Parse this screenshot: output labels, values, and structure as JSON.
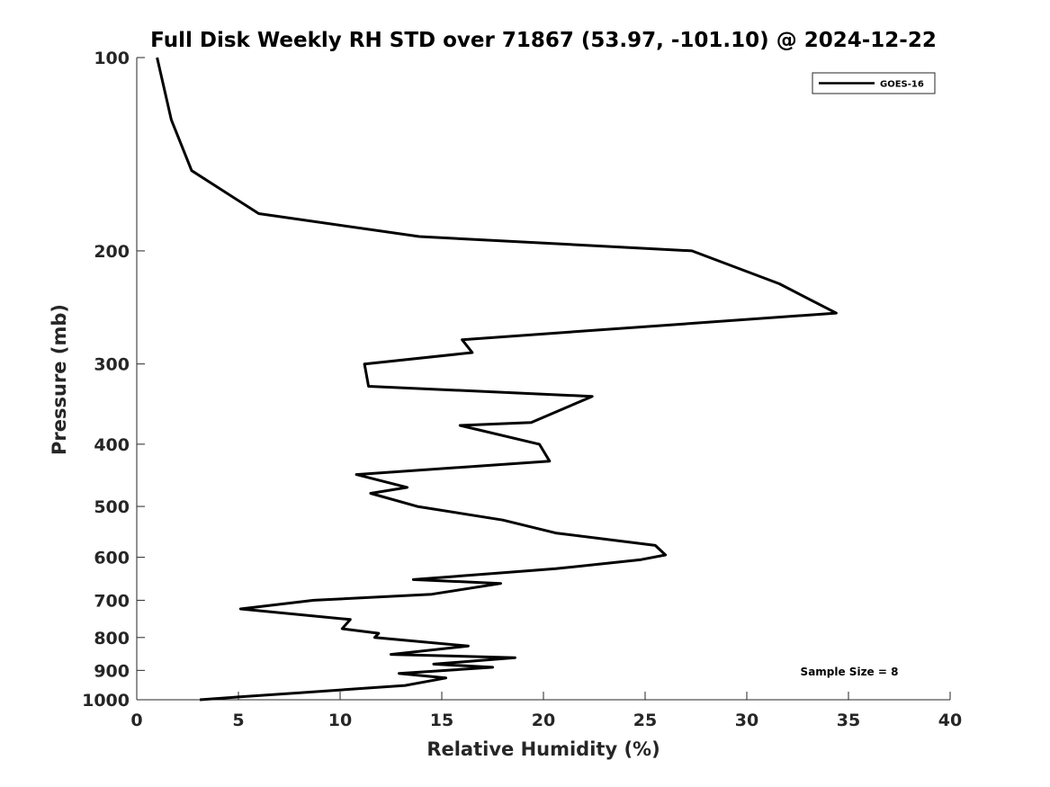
{
  "chart_data": {
    "type": "line",
    "title": "Full Disk Weekly RH STD over 71867 (53.97, -101.10) @ 2024-12-22",
    "xlabel": "Relative Humidity (%)",
    "ylabel": "Pressure (mb)",
    "xlim": [
      0,
      40
    ],
    "ylim": [
      100,
      1000
    ],
    "yscale": "log",
    "y_reversed": true,
    "grid": false,
    "x_ticks": [
      0,
      5,
      10,
      15,
      20,
      25,
      30,
      35,
      40
    ],
    "y_ticks": [
      100,
      200,
      300,
      400,
      500,
      600,
      700,
      800,
      900,
      1000
    ],
    "legend_position": "top-right",
    "annotation": "Sample Size = 8",
    "series": [
      {
        "name": "GOES-16",
        "color": "#000000",
        "points": [
          [
            1.0,
            100
          ],
          [
            1.7,
            125
          ],
          [
            2.7,
            150
          ],
          [
            6.0,
            175
          ],
          [
            13.9,
            190
          ],
          [
            27.3,
            200
          ],
          [
            31.6,
            225
          ],
          [
            34.4,
            250
          ],
          [
            16.0,
            275
          ],
          [
            16.5,
            288
          ],
          [
            11.2,
            300
          ],
          [
            11.4,
            325
          ],
          [
            22.4,
            337
          ],
          [
            19.4,
            370
          ],
          [
            15.9,
            374
          ],
          [
            19.8,
            400
          ],
          [
            20.3,
            425
          ],
          [
            10.8,
            446
          ],
          [
            13.3,
            467
          ],
          [
            11.5,
            477
          ],
          [
            13.8,
            500
          ],
          [
            18.0,
            525
          ],
          [
            20.6,
            550
          ],
          [
            25.5,
            575
          ],
          [
            26.0,
            595
          ],
          [
            24.8,
            605
          ],
          [
            20.6,
            625
          ],
          [
            13.6,
            650
          ],
          [
            17.9,
            659
          ],
          [
            14.5,
            685
          ],
          [
            8.7,
            700
          ],
          [
            5.1,
            722
          ],
          [
            10.5,
            750
          ],
          [
            10.1,
            775
          ],
          [
            11.9,
            788
          ],
          [
            11.7,
            800
          ],
          [
            16.3,
            825
          ],
          [
            12.5,
            850
          ],
          [
            18.6,
            860
          ],
          [
            14.6,
            880
          ],
          [
            17.5,
            890
          ],
          [
            12.9,
            910
          ],
          [
            15.2,
            925
          ],
          [
            13.2,
            950
          ],
          [
            8.1,
            975
          ],
          [
            5.0,
            990
          ],
          [
            3.1,
            1000
          ]
        ]
      }
    ]
  }
}
